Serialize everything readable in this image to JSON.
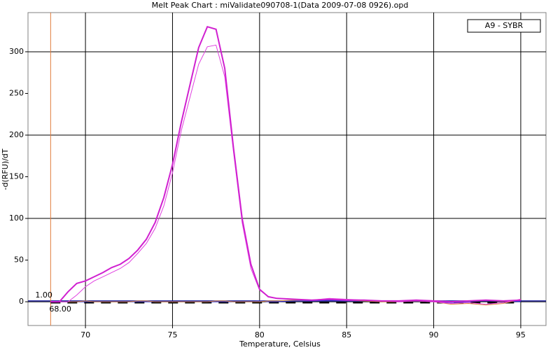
{
  "chart_data": {
    "type": "line",
    "title": "Melt Peak Chart : miValidate090708-1(Data 2009-07-08 0926).opd",
    "xlabel": "Temperature, Celsius",
    "ylabel": "-d(RFU)/dT",
    "legend": "A9 - SYBR",
    "legend_position": "upper right",
    "grid": true,
    "xlim": [
      66.7,
      96.45
    ],
    "ylim": [
      -28.5,
      347
    ],
    "xticks": [
      70,
      75,
      80,
      85,
      90,
      95
    ],
    "yticks": [
      0,
      50,
      100,
      150,
      200,
      250,
      300
    ],
    "markers": {
      "x": {
        "value": 68,
        "label": "68.00",
        "color": "#e07a3a"
      },
      "y": {
        "value": 1,
        "label": "1.00",
        "color": "#1c1c9c"
      }
    },
    "x": [
      68,
      68.5,
      69,
      69.5,
      70,
      70.5,
      71,
      71.5,
      72,
      72.5,
      73,
      73.5,
      74,
      74.5,
      75,
      75.5,
      76,
      76.5,
      77,
      77.5,
      78,
      78.5,
      79,
      79.5,
      80,
      80.5,
      81,
      82,
      83,
      84,
      85,
      86,
      87,
      88,
      89,
      90,
      91,
      92,
      93,
      94,
      95
    ],
    "series": [
      {
        "color": "#000000",
        "values": [
          -1,
          -1,
          -1,
          -1,
          -1,
          -1,
          -1,
          -1,
          -1,
          -1,
          -1,
          -1,
          -1,
          -1,
          -1,
          -1,
          -1,
          -1,
          -1,
          -1,
          -1,
          -1,
          -1,
          -1,
          -1,
          -1,
          -1,
          -1,
          -1,
          -1,
          -1,
          -1,
          -1,
          -1,
          -1,
          -1,
          -1,
          -1,
          -1,
          -1,
          -1
        ]
      },
      {
        "color": "#3a3ae0",
        "values": [
          0,
          0,
          0,
          0,
          0,
          0,
          0,
          0,
          0,
          0,
          0,
          0,
          0,
          0,
          0,
          0,
          0,
          0,
          0,
          0,
          0,
          0,
          0,
          0,
          1,
          0,
          0,
          1,
          1,
          2,
          1,
          1,
          0,
          1,
          1,
          0,
          -1,
          0,
          2,
          1,
          0
        ]
      },
      {
        "color": "#e0883a",
        "values": [
          0,
          0,
          0,
          0,
          1,
          0,
          0,
          0,
          0,
          0,
          1,
          1,
          0,
          0,
          0,
          0,
          0,
          0,
          0,
          1,
          1,
          0,
          0,
          0,
          0,
          1,
          1,
          2,
          2,
          3,
          2,
          1,
          0,
          0,
          1,
          0,
          -3,
          -2,
          -4,
          -2,
          3
        ]
      },
      {
        "color": "#e040e0",
        "values": [
          0,
          0,
          0,
          8,
          18,
          25,
          30,
          35,
          40,
          47,
          58,
          70,
          88,
          115,
          155,
          205,
          245,
          285,
          306,
          308,
          270,
          180,
          95,
          40,
          14,
          6,
          4,
          3,
          2,
          4,
          3,
          2,
          1,
          0,
          1,
          0,
          -2,
          -1,
          -3,
          -1,
          3
        ]
      },
      {
        "name": "A9 - SYBR",
        "color": "#d020d0",
        "values": [
          0,
          0,
          12,
          22,
          25,
          30,
          35,
          41,
          45,
          52,
          62,
          75,
          95,
          125,
          165,
          215,
          260,
          305,
          330,
          327,
          280,
          185,
          100,
          45,
          15,
          6,
          4,
          3,
          2,
          3,
          2,
          2,
          1,
          1,
          2,
          1,
          0,
          1,
          2,
          1,
          2
        ]
      }
    ]
  }
}
